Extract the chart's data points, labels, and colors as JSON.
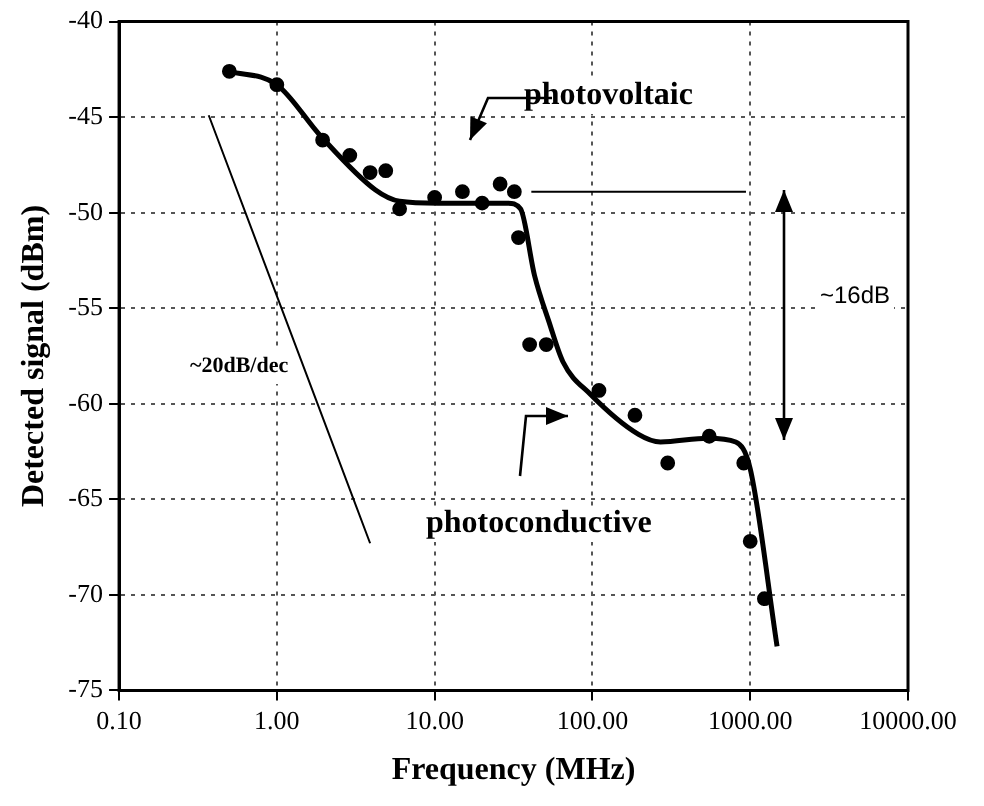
{
  "chart_data": {
    "type": "scatter",
    "xlabel": "Frequency (MHz)",
    "ylabel": "Detected signal (dBm)",
    "log": "x",
    "grid": true,
    "legend": false,
    "xlim": [
      0.1,
      10000
    ],
    "xticks": [
      {
        "value": 0.1,
        "label": "0.10"
      },
      {
        "value": 1,
        "label": "1.00"
      },
      {
        "value": 10,
        "label": "10.00"
      },
      {
        "value": 100,
        "label": "100.00"
      },
      {
        "value": 1000,
        "label": "1000.00"
      },
      {
        "value": 10000,
        "label": "10000.00"
      }
    ],
    "ylim": [
      -75,
      -40
    ],
    "yticks": [
      -75,
      -70,
      -65,
      -60,
      -55,
      -50,
      -45,
      -40
    ],
    "series": [
      {
        "color": "#000000",
        "marker": "circle",
        "x": [
          0.5,
          1,
          1.95,
          2.9,
          3.9,
          4.9,
          6,
          10,
          15,
          20,
          26,
          32,
          34,
          40,
          51,
          110,
          186,
          300,
          550,
          910,
          1000,
          1230
        ],
        "values": [
          -42.6,
          -43.3,
          -46.2,
          -47,
          -47.9,
          -47.8,
          -49.8,
          -49.2,
          -48.9,
          -49.5,
          -48.5,
          -48.9,
          -51.3,
          -56.9,
          -56.9,
          -59.3,
          -60.6,
          -63.1,
          -61.7,
          -63.1,
          -67.2,
          -70.2
        ]
      },
      {
        "type": "line",
        "color": "#000000",
        "marker": "none",
        "line_style": "solid",
        "x": [
          0.5,
          1,
          1.9,
          4.2,
          6,
          10.5,
          29,
          35,
          43,
          53,
          65,
          97,
          196,
          270,
          540,
          810,
          1000,
          1480
        ],
        "values": [
          -42.6,
          -43.3,
          -46,
          -48.8,
          -49.4,
          -49.5,
          -49.5,
          -49.8,
          -53.3,
          -55.7,
          -57.8,
          -59.5,
          -61.6,
          -62,
          -61.8,
          -62,
          -63.4,
          -72.7
        ]
      },
      {
        "type": "line",
        "color": "#000000",
        "marker": "none",
        "line_style": "solid",
        "x": [
          0.37,
          3.9
        ],
        "values": [
          -44.9,
          -67.3
        ]
      },
      {
        "type": "line",
        "color": "#000000",
        "marker": "none",
        "line_style": "solid",
        "x": [
          41,
          940
        ],
        "values": [
          -48.9,
          -48.9
        ]
      }
    ],
    "annotations": [
      "photovoltaic",
      "photoconductive",
      "~16dB",
      "~20dB/dec"
    ]
  }
}
